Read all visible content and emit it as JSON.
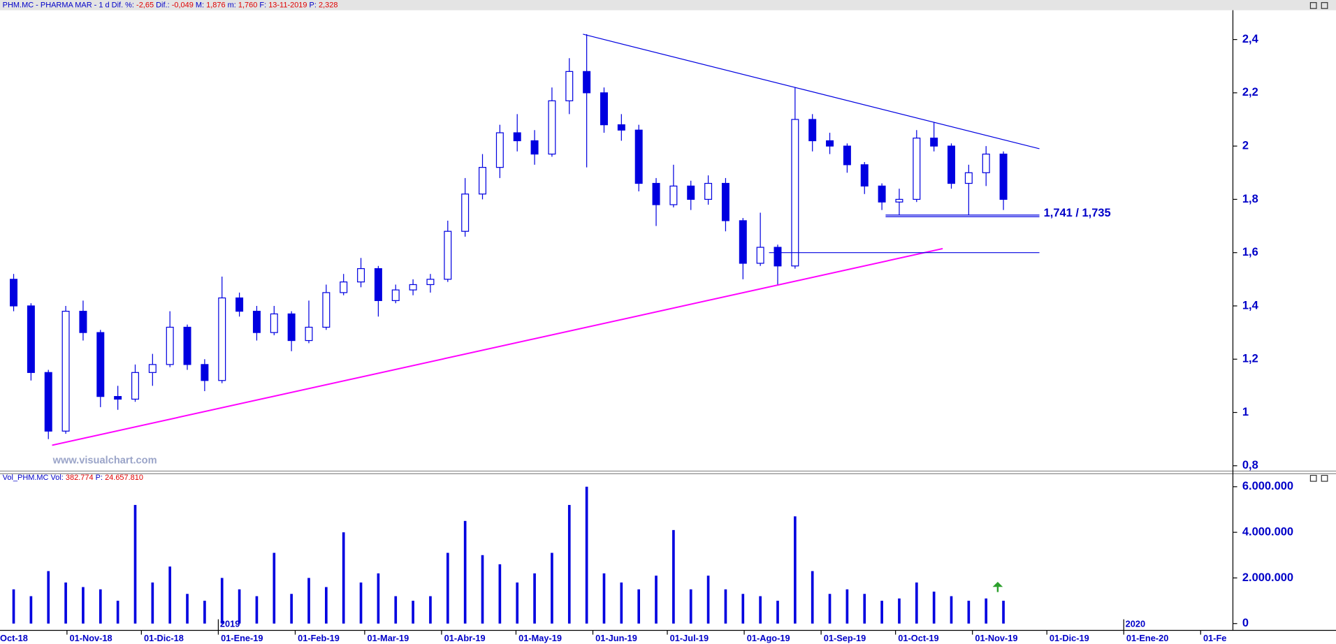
{
  "chart_data": [
    {
      "type": "candlestick",
      "header": {
        "symbol": "PHM.MC - PHARMA MAR -  1 d",
        "items": [
          {
            "label": "Dif. %:",
            "value": "-2,65"
          },
          {
            "label": "Dif.:",
            "value": "-0,049"
          },
          {
            "label": "M:",
            "value": "1,876"
          },
          {
            "label": "m:",
            "value": "1,760"
          },
          {
            "label": "F:",
            "value": "13-11-2019"
          },
          {
            "label": "P:",
            "value": "2,328"
          }
        ]
      },
      "watermark": "www.visualchart.com",
      "color": "#0000e0",
      "x": [
        "2018-10-08",
        "2018-10-15",
        "2018-10-22",
        "2018-10-29",
        "2018-11-05",
        "2018-11-12",
        "2018-11-19",
        "2018-11-26",
        "2018-12-03",
        "2018-12-10",
        "2018-12-17",
        "2018-12-24",
        "2018-12-31",
        "2019-01-07",
        "2019-01-14",
        "2019-01-21",
        "2019-01-28",
        "2019-02-04",
        "2019-02-11",
        "2019-02-18",
        "2019-02-25",
        "2019-03-04",
        "2019-03-11",
        "2019-03-18",
        "2019-03-25",
        "2019-04-01",
        "2019-04-08",
        "2019-04-15",
        "2019-04-22",
        "2019-04-29",
        "2019-05-06",
        "2019-05-13",
        "2019-05-20",
        "2019-05-27",
        "2019-06-03",
        "2019-06-10",
        "2019-06-17",
        "2019-06-24",
        "2019-07-01",
        "2019-07-08",
        "2019-07-15",
        "2019-07-22",
        "2019-07-29",
        "2019-08-05",
        "2019-08-12",
        "2019-08-19",
        "2019-08-26",
        "2019-09-02",
        "2019-09-09",
        "2019-09-16",
        "2019-09-23",
        "2019-09-30",
        "2019-10-07",
        "2019-10-14",
        "2019-10-21",
        "2019-10-28",
        "2019-11-04",
        "2019-11-11"
      ],
      "open": [
        1.5,
        1.4,
        1.15,
        0.93,
        1.38,
        1.3,
        1.06,
        1.05,
        1.15,
        1.18,
        1.32,
        1.18,
        1.12,
        1.43,
        1.38,
        1.3,
        1.37,
        1.27,
        1.32,
        1.45,
        1.49,
        1.54,
        1.42,
        1.46,
        1.48,
        1.5,
        1.68,
        1.82,
        1.92,
        2.05,
        2.02,
        1.97,
        2.17,
        2.28,
        2.2,
        2.08,
        2.06,
        1.86,
        1.78,
        1.85,
        1.8,
        1.86,
        1.72,
        1.56,
        1.62,
        1.55,
        2.1,
        2.02,
        2.0,
        1.93,
        1.85,
        1.79,
        1.8,
        2.03,
        2.0,
        1.86,
        1.9,
        1.97
      ],
      "high": [
        1.52,
        1.41,
        1.16,
        1.4,
        1.42,
        1.31,
        1.1,
        1.18,
        1.22,
        1.38,
        1.33,
        1.2,
        1.51,
        1.45,
        1.4,
        1.4,
        1.38,
        1.42,
        1.48,
        1.52,
        1.58,
        1.55,
        1.48,
        1.5,
        1.52,
        1.72,
        1.88,
        1.97,
        2.08,
        2.12,
        2.06,
        2.22,
        2.33,
        2.42,
        2.22,
        2.12,
        2.08,
        1.88,
        1.93,
        1.87,
        1.89,
        1.88,
        1.73,
        1.75,
        1.63,
        2.22,
        2.12,
        2.05,
        2.01,
        1.94,
        1.86,
        1.84,
        2.06,
        2.09,
        2.01,
        1.93,
        2.0,
        1.98
      ],
      "low": [
        1.38,
        1.12,
        0.9,
        0.92,
        1.27,
        1.02,
        1.01,
        1.04,
        1.1,
        1.17,
        1.16,
        1.08,
        1.11,
        1.36,
        1.27,
        1.29,
        1.23,
        1.26,
        1.31,
        1.44,
        1.47,
        1.36,
        1.41,
        1.44,
        1.45,
        1.49,
        1.66,
        1.8,
        1.88,
        1.98,
        1.93,
        1.96,
        2.12,
        1.92,
        2.05,
        2.02,
        1.83,
        1.7,
        1.77,
        1.76,
        1.78,
        1.68,
        1.5,
        1.55,
        1.48,
        1.54,
        1.98,
        1.97,
        1.9,
        1.82,
        1.76,
        1.74,
        1.79,
        1.98,
        1.84,
        1.74,
        1.85,
        1.76
      ],
      "close": [
        1.4,
        1.15,
        0.93,
        1.38,
        1.3,
        1.06,
        1.05,
        1.15,
        1.18,
        1.32,
        1.18,
        1.12,
        1.43,
        1.38,
        1.3,
        1.37,
        1.27,
        1.32,
        1.45,
        1.49,
        1.54,
        1.42,
        1.46,
        1.48,
        1.5,
        1.68,
        1.82,
        1.92,
        2.05,
        2.02,
        1.97,
        2.17,
        2.28,
        2.2,
        2.08,
        2.06,
        1.86,
        1.78,
        1.85,
        1.8,
        1.86,
        1.72,
        1.56,
        1.62,
        1.55,
        2.1,
        2.02,
        2.0,
        1.93,
        1.85,
        1.79,
        1.8,
        2.03,
        2.0,
        1.86,
        1.9,
        1.97,
        1.8
      ],
      "xlim": [
        "2018-10-05",
        "2020-02-14"
      ],
      "ylim": [
        0.78,
        2.51
      ],
      "yticks": [
        {
          "value": 0.8,
          "label": "0,8"
        },
        1,
        {
          "value": 1.2,
          "label": "1,2"
        },
        {
          "value": 1.4,
          "label": "1,4"
        },
        {
          "value": 1.6,
          "label": "1,6"
        },
        {
          "value": 1.8,
          "label": "1,8"
        },
        2,
        {
          "value": 2.2,
          "label": "2,2"
        },
        {
          "value": 2.4,
          "label": "2,4"
        }
      ],
      "trendlines": [
        {
          "color": "#0000e0",
          "x": [
            "2019-05-28",
            "2019-11-28"
          ],
          "y": [
            2.42,
            1.99
          ]
        },
        {
          "color": "#ff00ff",
          "x": [
            "2018-10-26",
            "2019-10-20"
          ],
          "y": [
            0.877,
            1.615
          ]
        }
      ],
      "levels": [
        {
          "x": [
            "2019-09-27",
            "2019-11-28"
          ],
          "values": [
            1.741,
            1.735
          ],
          "label": "1,741 / 1,735"
        },
        {
          "x": [
            "2019-08-11",
            "2019-11-28"
          ],
          "values": [
            1.6
          ]
        }
      ]
    },
    {
      "type": "volume",
      "header": {
        "symbol": "Vol_PHM.MC",
        "items": [
          {
            "label": "Vol:",
            "value": "382.774"
          },
          {
            "label": "P:",
            "value": "24.657.810"
          }
        ]
      },
      "color": "#0000e0",
      "values": [
        1500000,
        1200000,
        2300000,
        1800000,
        1600000,
        1500000,
        1000000,
        5200000,
        1800000,
        2500000,
        1300000,
        1000000,
        2000000,
        1500000,
        1200000,
        3100000,
        1300000,
        2000000,
        1600000,
        4000000,
        1800000,
        2200000,
        1200000,
        1000000,
        1200000,
        3100000,
        4500000,
        3000000,
        2600000,
        1800000,
        2200000,
        3100000,
        5200000,
        6000000,
        2200000,
        1800000,
        1500000,
        2100000,
        4100000,
        1500000,
        2100000,
        1500000,
        1300000,
        1200000,
        1000000,
        4700000,
        2300000,
        1300000,
        1500000,
        1300000,
        1000000,
        1100000,
        1800000,
        1400000,
        1200000,
        1000000,
        1100000,
        1000000
      ],
      "ylim": [
        0,
        6200000
      ],
      "yticks": [
        0,
        {
          "value": 2000000,
          "label": "2.000.000"
        },
        {
          "value": 4000000,
          "label": "4.000.000"
        },
        {
          "value": 6000000,
          "label": "6.000.000"
        }
      ],
      "xticks": [
        {
          "value": "2018-10-01",
          "label": "Oct-18"
        },
        {
          "value": "2018-11-01",
          "label": "01-Nov-18"
        },
        {
          "value": "2018-12-01",
          "label": "01-Dic-18"
        },
        {
          "value": "2019-01-01",
          "label": "01-Ene-19"
        },
        {
          "value": "2019-02-01",
          "label": "01-Feb-19"
        },
        {
          "value": "2019-03-01",
          "label": "01-Mar-19"
        },
        {
          "value": "2019-04-01",
          "label": "01-Abr-19"
        },
        {
          "value": "2019-05-01",
          "label": "01-May-19"
        },
        {
          "value": "2019-06-01",
          "label": "01-Jun-19"
        },
        {
          "value": "2019-07-01",
          "label": "01-Jul-19"
        },
        {
          "value": "2019-08-01",
          "label": "01-Ago-19"
        },
        {
          "value": "2019-09-01",
          "label": "01-Sep-19"
        },
        {
          "value": "2019-10-01",
          "label": "01-Oct-19"
        },
        {
          "value": "2019-11-01",
          "label": "01-Nov-19"
        },
        {
          "value": "2019-12-01",
          "label": "01-Dic-19"
        },
        {
          "value": "2020-01-01",
          "label": "01-Ene-20"
        },
        {
          "value": "2020-02-01",
          "label": "01-Fe"
        }
      ],
      "year_labels": [
        {
          "value": "2019-01-01",
          "label": "2019"
        },
        {
          "value": "2020-01-01",
          "label": "2020"
        }
      ]
    }
  ]
}
